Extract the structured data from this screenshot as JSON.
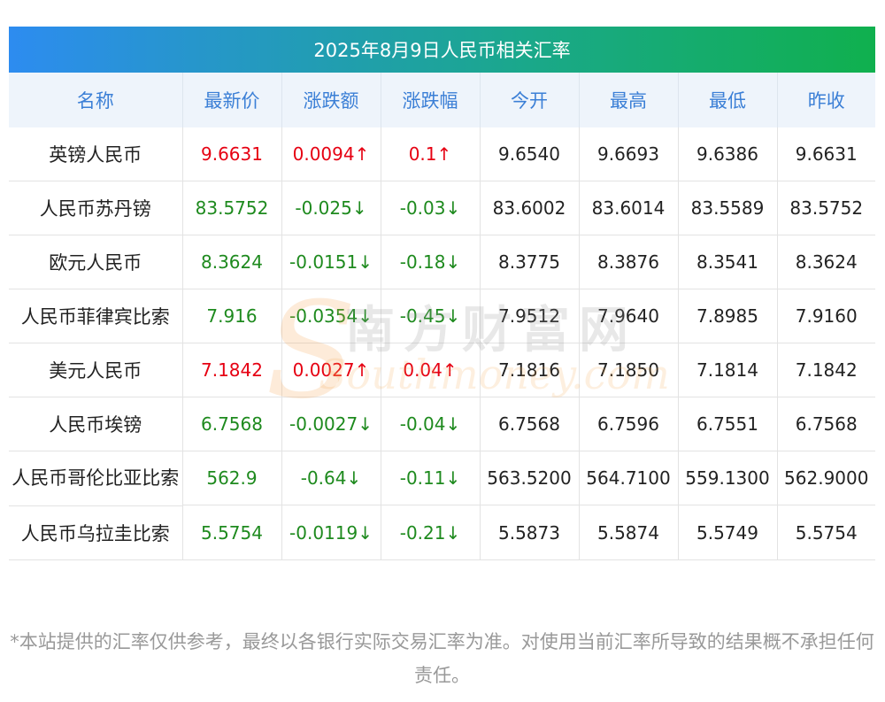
{
  "title": "2025年8月9日人民币相关汇率",
  "headers": [
    "名称",
    "最新价",
    "涨跌额",
    "涨跌幅",
    "今开",
    "最高",
    "最低",
    "昨收"
  ],
  "rows": [
    {
      "name": "英镑人民币",
      "latest": "9.6631",
      "change": "0.0094↑",
      "pct": "0.1↑",
      "open": "9.6540",
      "high": "9.6693",
      "low": "9.6386",
      "prev": "9.6631",
      "dir": "up"
    },
    {
      "name": "人民币苏丹镑",
      "latest": "83.5752",
      "change": "-0.025↓",
      "pct": "-0.03↓",
      "open": "83.6002",
      "high": "83.6014",
      "low": "83.5589",
      "prev": "83.5752",
      "dir": "down"
    },
    {
      "name": "欧元人民币",
      "latest": "8.3624",
      "change": "-0.0151↓",
      "pct": "-0.18↓",
      "open": "8.3775",
      "high": "8.3876",
      "low": "8.3541",
      "prev": "8.3624",
      "dir": "down"
    },
    {
      "name": "人民币菲律宾比索",
      "latest": "7.916",
      "change": "-0.0354↓",
      "pct": "-0.45↓",
      "open": "7.9512",
      "high": "7.9640",
      "low": "7.8985",
      "prev": "7.9160",
      "dir": "down"
    },
    {
      "name": "美元人民币",
      "latest": "7.1842",
      "change": "0.0027↑",
      "pct": "0.04↑",
      "open": "7.1816",
      "high": "7.1850",
      "low": "7.1814",
      "prev": "7.1842",
      "dir": "up"
    },
    {
      "name": "人民币埃镑",
      "latest": "6.7568",
      "change": "-0.0027↓",
      "pct": "-0.04↓",
      "open": "6.7568",
      "high": "6.7596",
      "low": "6.7551",
      "prev": "6.7568",
      "dir": "down"
    },
    {
      "name": "人民币哥伦比亚比索",
      "latest": "562.9",
      "change": "-0.64↓",
      "pct": "-0.11↓",
      "open": "563.5200",
      "high": "564.7100",
      "low": "559.1300",
      "prev": "562.9000",
      "dir": "down"
    },
    {
      "name": "人民币乌拉圭比索",
      "latest": "5.5754",
      "change": "-0.0119↓",
      "pct": "-0.21↓",
      "open": "5.5873",
      "high": "5.5874",
      "low": "5.5749",
      "prev": "5.5754",
      "dir": "down"
    }
  ],
  "watermark": {
    "cn": "南方财富网",
    "en": "Southmoney.com"
  },
  "footnote": "*本站提供的汇率仅供参考，最终以各银行实际交易汇率为准。对使用当前汇率所导致的结果概不承担任何责任。",
  "colors": {
    "up": "#e60012",
    "down": "#1e8a1e",
    "header_text": "#3b7fd6",
    "title_start": "#2d8cf0",
    "title_end": "#10b04e"
  }
}
